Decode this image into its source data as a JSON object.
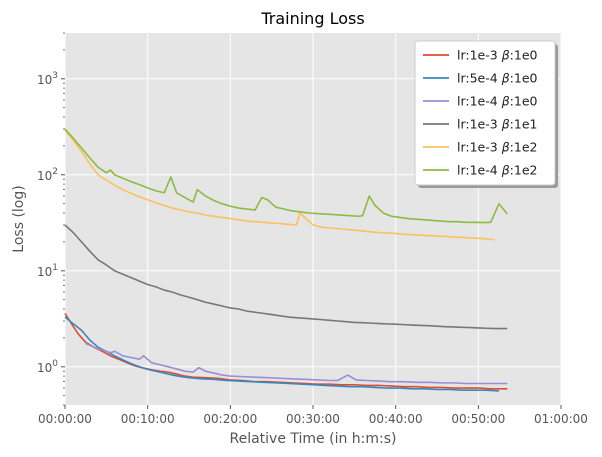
{
  "chart_data": {
    "type": "line",
    "title": "Training Loss",
    "xlabel": "Relative Time (in h:m:s)",
    "ylabel": "Loss (log)",
    "xlim": [
      0,
      60
    ],
    "ylim": [
      0.4,
      3000
    ],
    "yscale": "log",
    "grid": true,
    "legend_position": "top-right",
    "x_ticks": [
      {
        "value": 0,
        "label": "00:00:00"
      },
      {
        "value": 10,
        "label": "00:10:00"
      },
      {
        "value": 20,
        "label": "00:20:00"
      },
      {
        "value": 30,
        "label": "00:30:00"
      },
      {
        "value": 40,
        "label": "00:40:00"
      },
      {
        "value": 50,
        "label": "00:50:00"
      },
      {
        "value": 60,
        "label": "01:00:00"
      }
    ],
    "y_ticks": [
      {
        "value": 1,
        "base": "10",
        "exp": "0"
      },
      {
        "value": 10,
        "base": "10",
        "exp": "1"
      },
      {
        "value": 100,
        "base": "10",
        "exp": "2"
      },
      {
        "value": 1000,
        "base": "10",
        "exp": "3"
      }
    ],
    "series": [
      {
        "name": "lr:1e-3 β:1e0",
        "label_prefix": "lr:1e-3 ",
        "label_suffix": ":1e0",
        "color": "#E24A33",
        "points": [
          [
            0,
            3.6
          ],
          [
            0.8,
            2.8
          ],
          [
            1.6,
            2.2
          ],
          [
            2.5,
            1.8
          ],
          [
            3.5,
            1.6
          ],
          [
            4.5,
            1.45
          ],
          [
            5.5,
            1.3
          ],
          [
            6.5,
            1.2
          ],
          [
            7.5,
            1.1
          ],
          [
            8.5,
            1.02
          ],
          [
            9.5,
            0.97
          ],
          [
            10.5,
            0.93
          ],
          [
            11.5,
            0.9
          ],
          [
            12.5,
            0.88
          ],
          [
            13.5,
            0.84
          ],
          [
            14.5,
            0.8
          ],
          [
            15.5,
            0.78
          ],
          [
            17,
            0.77
          ],
          [
            18.5,
            0.76
          ],
          [
            20,
            0.73
          ],
          [
            21.5,
            0.72
          ],
          [
            23,
            0.7
          ],
          [
            24.5,
            0.7
          ],
          [
            26,
            0.69
          ],
          [
            27.5,
            0.68
          ],
          [
            29,
            0.67
          ],
          [
            30.5,
            0.66
          ],
          [
            32,
            0.66
          ],
          [
            33.5,
            0.65
          ],
          [
            35,
            0.65
          ],
          [
            36.5,
            0.64
          ],
          [
            38,
            0.64
          ],
          [
            39.5,
            0.63
          ],
          [
            41,
            0.62
          ],
          [
            42.5,
            0.62
          ],
          [
            44,
            0.61
          ],
          [
            45.5,
            0.61
          ],
          [
            47,
            0.6
          ],
          [
            48.5,
            0.6
          ],
          [
            50,
            0.6
          ],
          [
            51.5,
            0.59
          ],
          [
            53.5,
            0.59
          ]
        ]
      },
      {
        "name": "lr:5e-4 β:1e0",
        "label_prefix": "lr:5e-4 ",
        "label_suffix": ":1e0",
        "color": "#348ABD",
        "points": [
          [
            0,
            3.3
          ],
          [
            1,
            2.8
          ],
          [
            2,
            2.4
          ],
          [
            3,
            1.9
          ],
          [
            4,
            1.6
          ],
          [
            5,
            1.45
          ],
          [
            6,
            1.3
          ],
          [
            7,
            1.18
          ],
          [
            8,
            1.08
          ],
          [
            9,
            1.0
          ],
          [
            10,
            0.94
          ],
          [
            11,
            0.9
          ],
          [
            12,
            0.86
          ],
          [
            13,
            0.82
          ],
          [
            14,
            0.79
          ],
          [
            15,
            0.77
          ],
          [
            16.5,
            0.75
          ],
          [
            18,
            0.74
          ],
          [
            19.5,
            0.72
          ],
          [
            21,
            0.71
          ],
          [
            22.5,
            0.7
          ],
          [
            24,
            0.69
          ],
          [
            25.5,
            0.68
          ],
          [
            27,
            0.67
          ],
          [
            28.5,
            0.66
          ],
          [
            30,
            0.65
          ],
          [
            31.5,
            0.64
          ],
          [
            33,
            0.63
          ],
          [
            34.5,
            0.62
          ],
          [
            36,
            0.62
          ],
          [
            37.5,
            0.61
          ],
          [
            39,
            0.6
          ],
          [
            40.5,
            0.6
          ],
          [
            42,
            0.59
          ],
          [
            43.5,
            0.59
          ],
          [
            45,
            0.58
          ],
          [
            46.5,
            0.58
          ],
          [
            48,
            0.57
          ],
          [
            49.5,
            0.57
          ],
          [
            51,
            0.57
          ],
          [
            52.5,
            0.56
          ]
        ]
      },
      {
        "name": "lr:1e-4 β:1e0",
        "label_prefix": "lr:1e-4 ",
        "label_suffix": ":1e0",
        "color": "#988ED5",
        "points": [
          [
            2.5,
            1.75
          ],
          [
            3.5,
            1.6
          ],
          [
            4.5,
            1.5
          ],
          [
            5.5,
            1.4
          ],
          [
            6,
            1.45
          ],
          [
            7,
            1.3
          ],
          [
            8,
            1.25
          ],
          [
            9,
            1.2
          ],
          [
            9.5,
            1.3
          ],
          [
            10.5,
            1.1
          ],
          [
            11.5,
            1.05
          ],
          [
            12.5,
            1.0
          ],
          [
            13.5,
            0.95
          ],
          [
            14.5,
            0.9
          ],
          [
            15.5,
            0.88
          ],
          [
            16.2,
            0.98
          ],
          [
            17,
            0.9
          ],
          [
            18,
            0.86
          ],
          [
            19,
            0.82
          ],
          [
            20,
            0.8
          ],
          [
            21.5,
            0.79
          ],
          [
            23,
            0.78
          ],
          [
            24.5,
            0.77
          ],
          [
            26,
            0.76
          ],
          [
            27.5,
            0.75
          ],
          [
            29,
            0.74
          ],
          [
            30.5,
            0.73
          ],
          [
            32,
            0.72
          ],
          [
            33,
            0.72
          ],
          [
            34.2,
            0.82
          ],
          [
            35.2,
            0.73
          ],
          [
            36.5,
            0.72
          ],
          [
            38,
            0.71
          ],
          [
            39.5,
            0.7
          ],
          [
            41,
            0.7
          ],
          [
            42.5,
            0.69
          ],
          [
            44,
            0.69
          ],
          [
            45.5,
            0.68
          ],
          [
            47,
            0.68
          ],
          [
            48.5,
            0.67
          ],
          [
            50,
            0.67
          ],
          [
            51.5,
            0.67
          ],
          [
            53.5,
            0.67
          ]
        ]
      },
      {
        "name": "lr:1e-3 β:1e1",
        "label_prefix": "lr:1e-3 ",
        "label_suffix": ":1e1",
        "color": "#777777",
        "points": [
          [
            0,
            30
          ],
          [
            1,
            25
          ],
          [
            2,
            20
          ],
          [
            3,
            16
          ],
          [
            4,
            13
          ],
          [
            5,
            11.5
          ],
          [
            6,
            10
          ],
          [
            7,
            9.2
          ],
          [
            8,
            8.5
          ],
          [
            9,
            7.8
          ],
          [
            10,
            7.2
          ],
          [
            11,
            6.8
          ],
          [
            12,
            6.3
          ],
          [
            13,
            6.0
          ],
          [
            14,
            5.6
          ],
          [
            15,
            5.3
          ],
          [
            16,
            5.0
          ],
          [
            17,
            4.7
          ],
          [
            18,
            4.5
          ],
          [
            19,
            4.3
          ],
          [
            20,
            4.1
          ],
          [
            21,
            4.0
          ],
          [
            22,
            3.8
          ],
          [
            23,
            3.7
          ],
          [
            24,
            3.6
          ],
          [
            25,
            3.5
          ],
          [
            26,
            3.4
          ],
          [
            27,
            3.3
          ],
          [
            28,
            3.25
          ],
          [
            29,
            3.2
          ],
          [
            30,
            3.15
          ],
          [
            31,
            3.1
          ],
          [
            32,
            3.05
          ],
          [
            33,
            3.0
          ],
          [
            34,
            2.95
          ],
          [
            35,
            2.9
          ],
          [
            36,
            2.88
          ],
          [
            37,
            2.85
          ],
          [
            38,
            2.82
          ],
          [
            39,
            2.8
          ],
          [
            40,
            2.78
          ],
          [
            41,
            2.75
          ],
          [
            42,
            2.72
          ],
          [
            43,
            2.7
          ],
          [
            44,
            2.68
          ],
          [
            45,
            2.65
          ],
          [
            46,
            2.62
          ],
          [
            47,
            2.6
          ],
          [
            48,
            2.58
          ],
          [
            49,
            2.56
          ],
          [
            50,
            2.54
          ],
          [
            51,
            2.52
          ],
          [
            52,
            2.5
          ],
          [
            53.5,
            2.5
          ]
        ]
      },
      {
        "name": "lr:1e-3 β:1e2",
        "label_prefix": "lr:1e-3 ",
        "label_suffix": ":1e2",
        "color": "#FBC15E",
        "points": [
          [
            0,
            290
          ],
          [
            1,
            230
          ],
          [
            2,
            175
          ],
          [
            3,
            130
          ],
          [
            4,
            100
          ],
          [
            5,
            88
          ],
          [
            6,
            78
          ],
          [
            7,
            70
          ],
          [
            8,
            64
          ],
          [
            9,
            59
          ],
          [
            10,
            55
          ],
          [
            11,
            51
          ],
          [
            12,
            48
          ],
          [
            13,
            45
          ],
          [
            14,
            43
          ],
          [
            15,
            41
          ],
          [
            16,
            40
          ],
          [
            17,
            38
          ],
          [
            18,
            37
          ],
          [
            19,
            36
          ],
          [
            20,
            35
          ],
          [
            21,
            34
          ],
          [
            22,
            33
          ],
          [
            23,
            32.5
          ],
          [
            24,
            32
          ],
          [
            25,
            31.5
          ],
          [
            26,
            31
          ],
          [
            27,
            30.5
          ],
          [
            28,
            30
          ],
          [
            28.4,
            40
          ],
          [
            29,
            36
          ],
          [
            30,
            30
          ],
          [
            31,
            28.5
          ],
          [
            32,
            28
          ],
          [
            33,
            27.5
          ],
          [
            34,
            27
          ],
          [
            35,
            26.5
          ],
          [
            36,
            26
          ],
          [
            37,
            25.5
          ],
          [
            38,
            25
          ],
          [
            39,
            24.8
          ],
          [
            40,
            24.5
          ],
          [
            41,
            24
          ],
          [
            42,
            23.8
          ],
          [
            43,
            23.5
          ],
          [
            44,
            23.2
          ],
          [
            45,
            23
          ],
          [
            46,
            22.8
          ],
          [
            47,
            22.5
          ],
          [
            48,
            22.3
          ],
          [
            49,
            22
          ],
          [
            50,
            21.8
          ],
          [
            51,
            21.5
          ],
          [
            52,
            21
          ]
        ]
      },
      {
        "name": "lr:1e-4 β:1e2",
        "label_prefix": "lr:1e-4 ",
        "label_suffix": ":1e2",
        "color": "#8EBA42",
        "points": [
          [
            0,
            300
          ],
          [
            1,
            240
          ],
          [
            2,
            190
          ],
          [
            3,
            150
          ],
          [
            4,
            120
          ],
          [
            5,
            105
          ],
          [
            5.5,
            112
          ],
          [
            6,
            100
          ],
          [
            7,
            92
          ],
          [
            8,
            85
          ],
          [
            9,
            79
          ],
          [
            10,
            73
          ],
          [
            11,
            68
          ],
          [
            12,
            65
          ],
          [
            12.8,
            95
          ],
          [
            13.5,
            65
          ],
          [
            14.5,
            58
          ],
          [
            15.5,
            52
          ],
          [
            16,
            70
          ],
          [
            17,
            60
          ],
          [
            18,
            54
          ],
          [
            19,
            50
          ],
          [
            20,
            47
          ],
          [
            21,
            45
          ],
          [
            22,
            44
          ],
          [
            23,
            43
          ],
          [
            23.8,
            58
          ],
          [
            24.5,
            55
          ],
          [
            25.5,
            46
          ],
          [
            26.5,
            44
          ],
          [
            27.5,
            42
          ],
          [
            28.5,
            41
          ],
          [
            29.5,
            40
          ],
          [
            30.5,
            39.5
          ],
          [
            31.5,
            39
          ],
          [
            32.5,
            38.5
          ],
          [
            33.5,
            38
          ],
          [
            34.5,
            37.5
          ],
          [
            35.5,
            37
          ],
          [
            36,
            37.5
          ],
          [
            36.8,
            60
          ],
          [
            37.5,
            48
          ],
          [
            38.5,
            40
          ],
          [
            39.5,
            37
          ],
          [
            40.5,
            36
          ],
          [
            41.5,
            35
          ],
          [
            42.5,
            34.5
          ],
          [
            43.5,
            34
          ],
          [
            44.5,
            33.5
          ],
          [
            45.5,
            33
          ],
          [
            46.5,
            32.5
          ],
          [
            47.5,
            32.5
          ],
          [
            48.5,
            32
          ],
          [
            49.5,
            32
          ],
          [
            50.5,
            31.8
          ],
          [
            51.5,
            32
          ],
          [
            52.5,
            50
          ],
          [
            53.5,
            39
          ]
        ]
      }
    ]
  }
}
